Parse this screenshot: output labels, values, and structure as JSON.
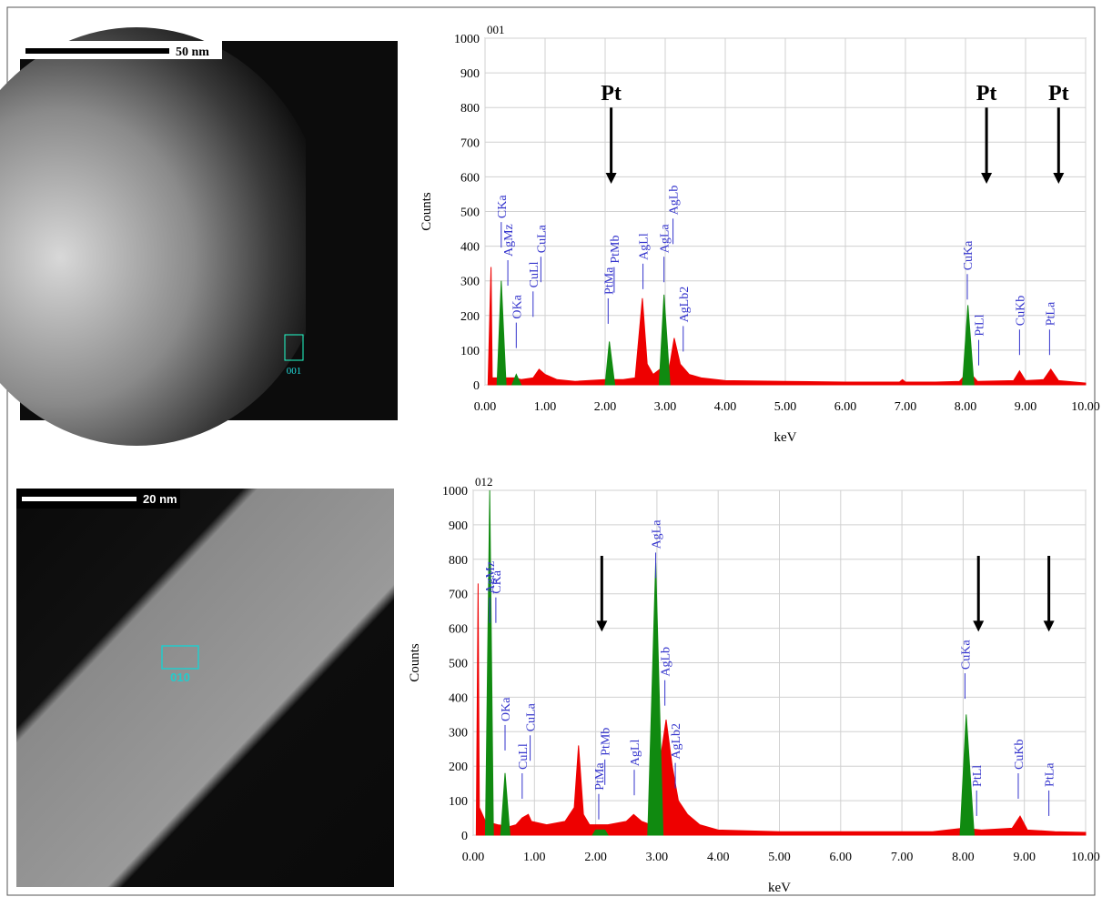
{
  "images": [
    {
      "scale_label": "50 nm",
      "region_label": "001"
    },
    {
      "scale_label": "20 nm",
      "region_label": "010"
    }
  ],
  "chart_data": [
    {
      "type": "area",
      "title": "001",
      "x_label": "keV",
      "y_label": "Counts",
      "xlim": [
        0,
        10
      ],
      "ylim": [
        0,
        1000
      ],
      "xticks": [
        {
          "value": 0,
          "label": "0.00"
        },
        {
          "value": 1,
          "label": "1.00"
        },
        {
          "value": 2,
          "label": "2.00"
        },
        {
          "value": 3,
          "label": "3.00"
        },
        {
          "value": 4,
          "label": "4.00"
        },
        {
          "value": 5,
          "label": "5.00"
        },
        {
          "value": 6,
          "label": "6.00"
        },
        {
          "value": 7,
          "label": "7.00"
        },
        {
          "value": 8,
          "label": "8.00"
        },
        {
          "value": 9,
          "label": "9.00"
        },
        {
          "value": 10,
          "label": "10.00"
        }
      ],
      "yticks": [
        0,
        100,
        200,
        300,
        400,
        500,
        600,
        700,
        800,
        900,
        1000
      ],
      "grid": true,
      "series": [
        {
          "color": "#ee0000",
          "x": [
            0.05,
            0.1,
            0.12,
            0.2,
            0.5,
            0.6,
            0.8,
            0.9,
            1.0,
            1.2,
            1.5,
            2.0,
            2.3,
            2.5,
            2.62,
            2.7,
            2.8,
            2.95,
            3.05,
            3.15,
            3.25,
            3.4,
            3.6,
            4.0,
            5.0,
            6.0,
            6.9,
            6.95,
            7.0,
            7.5,
            7.9,
            8.05,
            8.2,
            8.8,
            8.9,
            9.0,
            9.3,
            9.42,
            9.55,
            10.0
          ],
          "values": [
            0,
            340,
            20,
            20,
            20,
            15,
            20,
            45,
            30,
            15,
            10,
            15,
            15,
            20,
            250,
            60,
            30,
            50,
            30,
            135,
            60,
            30,
            20,
            12,
            10,
            8,
            8,
            15,
            8,
            8,
            10,
            40,
            10,
            12,
            40,
            12,
            15,
            45,
            12,
            5
          ]
        },
        {
          "color": "#108a10",
          "x": [
            0.2,
            0.27,
            0.35,
            null,
            0.45,
            0.52,
            0.6,
            null,
            2.0,
            2.07,
            2.16,
            null,
            2.9,
            2.98,
            3.08,
            null,
            7.95,
            8.04,
            8.14
          ],
          "values": [
            0,
            300,
            0,
            null,
            0,
            30,
            0,
            null,
            0,
            125,
            0,
            null,
            0,
            260,
            0,
            null,
            0,
            230,
            0
          ]
        }
      ],
      "annotations": [
        {
          "text": "CKa",
          "x": 0.27,
          "y": 480
        },
        {
          "text": "AgMz",
          "x": 0.38,
          "y": 370
        },
        {
          "text": "OKa",
          "x": 0.52,
          "y": 190
        },
        {
          "text": "CuLl",
          "x": 0.8,
          "y": 280
        },
        {
          "text": "CuLa",
          "x": 0.93,
          "y": 380
        },
        {
          "text": "PtMa",
          "x": 2.05,
          "y": 260
        },
        {
          "text": "PtMb",
          "x": 2.15,
          "y": 350
        },
        {
          "text": "AgLl",
          "x": 2.63,
          "y": 360
        },
        {
          "text": "AgLa",
          "x": 2.98,
          "y": 380
        },
        {
          "text": "AgLb",
          "x": 3.13,
          "y": 490
        },
        {
          "text": "AgLb2",
          "x": 3.3,
          "y": 180
        },
        {
          "text": "CuKa",
          "x": 8.03,
          "y": 330
        },
        {
          "text": "PtLl",
          "x": 8.22,
          "y": 140
        },
        {
          "text": "CuKb",
          "x": 8.9,
          "y": 170
        },
        {
          "text": "PtLa",
          "x": 9.4,
          "y": 170
        }
      ],
      "arrows": [
        {
          "label": "Pt",
          "x": 2.1,
          "y1": 800,
          "y2": 580
        },
        {
          "label": "Pt",
          "x": 8.35,
          "y1": 800,
          "y2": 580
        },
        {
          "label": "Pt",
          "x": 9.55,
          "y1": 800,
          "y2": 580
        }
      ]
    },
    {
      "type": "area",
      "title": "012",
      "x_label": "keV",
      "y_label": "Counts",
      "xlim": [
        0,
        10
      ],
      "ylim": [
        0,
        1000
      ],
      "xticks": [
        {
          "value": 0,
          "label": "0.00"
        },
        {
          "value": 1,
          "label": "1.00"
        },
        {
          "value": 2,
          "label": "2.00"
        },
        {
          "value": 3,
          "label": "3.00"
        },
        {
          "value": 4,
          "label": "4.00"
        },
        {
          "value": 5,
          "label": "5.00"
        },
        {
          "value": 6,
          "label": "6.00"
        },
        {
          "value": 7,
          "label": "7.00"
        },
        {
          "value": 8,
          "label": "8.00"
        },
        {
          "value": 9,
          "label": "9.00"
        },
        {
          "value": 10,
          "label": "10.00"
        }
      ],
      "yticks": [
        0,
        100,
        200,
        300,
        400,
        500,
        600,
        700,
        800,
        900,
        1000
      ],
      "grid": true,
      "series": [
        {
          "color": "#ee0000",
          "x": [
            0.05,
            0.08,
            0.1,
            0.15,
            0.2,
            0.4,
            0.6,
            0.7,
            0.8,
            0.9,
            0.95,
            1.2,
            1.5,
            1.65,
            1.72,
            1.8,
            1.9,
            2.2,
            2.5,
            2.62,
            2.75,
            2.9,
            3.15,
            3.25,
            3.35,
            3.5,
            3.7,
            4.0,
            5.0,
            6.0,
            7.0,
            7.5,
            8.0,
            8.3,
            8.8,
            8.93,
            9.05,
            9.5,
            10.0
          ],
          "values": [
            0,
            730,
            80,
            60,
            40,
            30,
            25,
            30,
            50,
            60,
            40,
            30,
            40,
            80,
            260,
            60,
            30,
            30,
            40,
            60,
            40,
            30,
            335,
            200,
            100,
            60,
            30,
            15,
            10,
            10,
            10,
            10,
            20,
            15,
            20,
            55,
            15,
            10,
            8
          ]
        },
        {
          "color": "#108a10",
          "x": [
            0.2,
            0.27,
            0.33,
            null,
            0.45,
            0.52,
            0.6,
            null,
            1.95,
            2.0,
            2.15,
            2.2,
            null,
            2.85,
            2.98,
            3.1,
            null,
            7.95,
            8.05,
            8.18
          ],
          "values": [
            0,
            1000,
            0,
            null,
            0,
            180,
            0,
            null,
            0,
            15,
            15,
            0,
            null,
            0,
            790,
            0,
            null,
            0,
            350,
            0
          ]
        }
      ],
      "annotations": [
        {
          "text": "AgMz",
          "x": 0.27,
          "y": 700
        },
        {
          "text": "CKa",
          "x": 0.37,
          "y": 700
        },
        {
          "text": "OKa",
          "x": 0.52,
          "y": 330
        },
        {
          "text": "CuLl",
          "x": 0.8,
          "y": 190
        },
        {
          "text": "CuLa",
          "x": 0.93,
          "y": 300
        },
        {
          "text": "PtMa",
          "x": 2.05,
          "y": 130
        },
        {
          "text": "PtMb",
          "x": 2.15,
          "y": 230
        },
        {
          "text": "AgLl",
          "x": 2.63,
          "y": 200
        },
        {
          "text": "AgLa",
          "x": 2.98,
          "y": 830
        },
        {
          "text": "AgLb",
          "x": 3.13,
          "y": 460
        },
        {
          "text": "AgLb2",
          "x": 3.3,
          "y": 220
        },
        {
          "text": "CuKa",
          "x": 8.03,
          "y": 480
        },
        {
          "text": "PtLl",
          "x": 8.22,
          "y": 140
        },
        {
          "text": "CuKb",
          "x": 8.9,
          "y": 190
        },
        {
          "text": "PtLa",
          "x": 9.4,
          "y": 140
        }
      ],
      "arrows": [
        {
          "x": 2.1,
          "y1": 810,
          "y2": 590
        },
        {
          "x": 8.25,
          "y1": 810,
          "y2": 590
        },
        {
          "x": 9.4,
          "y1": 810,
          "y2": 590
        }
      ]
    }
  ]
}
